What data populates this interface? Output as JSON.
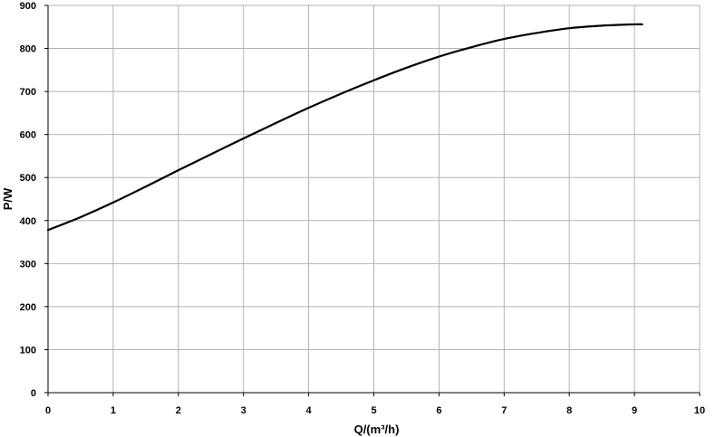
{
  "chart_data": {
    "type": "line",
    "title": "",
    "xlabel": "Q/(m³/h)",
    "ylabel": "P/W",
    "xlim": [
      0,
      10
    ],
    "ylim": [
      0,
      900
    ],
    "xticks": [
      "0",
      "1",
      "2",
      "3",
      "4",
      "5",
      "6",
      "7",
      "8",
      "9",
      "10"
    ],
    "yticks": [
      "0",
      "100",
      "200",
      "300",
      "400",
      "500",
      "600",
      "700",
      "800",
      "900"
    ],
    "grid": true,
    "legend": "none",
    "series": [
      {
        "color": "#000000",
        "x": [
          0,
          0.5,
          1,
          1.5,
          2,
          2.5,
          3,
          3.5,
          4,
          4.5,
          5,
          5.5,
          6,
          6.5,
          7,
          7.5,
          8,
          8.5,
          9,
          9.12
        ],
        "y": [
          378,
          408,
          442,
          479,
          517,
          554,
          591,
          627,
          662,
          695,
          726,
          755,
          781,
          803,
          822,
          836,
          847,
          853,
          856,
          856
        ]
      }
    ]
  }
}
